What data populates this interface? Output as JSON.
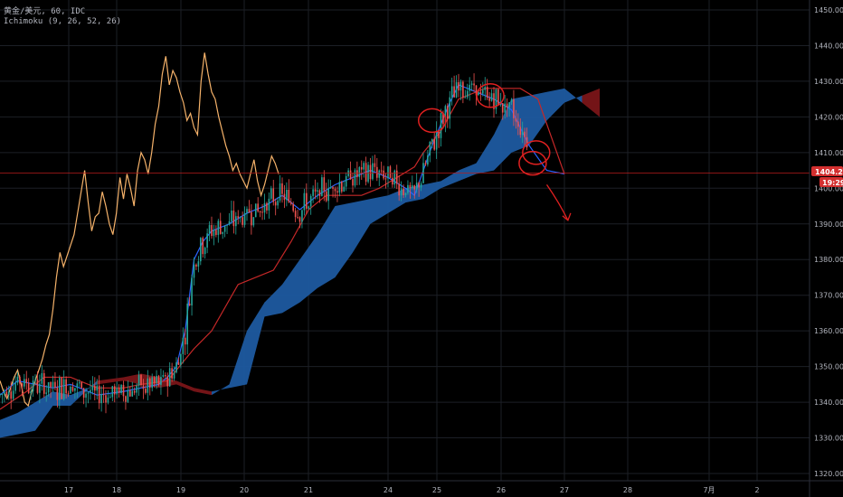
{
  "header": {
    "symbol_line": "黄金/美元, 60, IDC",
    "indicator_line": "Ichimoku (9, 26, 52, 26)"
  },
  "price_axis": {
    "last_price_label": "1404.29",
    "countdown_label": "19:29"
  },
  "chart_data": {
    "type": "line",
    "title": "",
    "xlabel": "",
    "ylabel": "",
    "ylim": [
      1320,
      1450
    ],
    "xlim": [
      16.3,
      2.8
    ],
    "x_tick_labels": [
      "17",
      "18",
      "19",
      "20",
      "21",
      "24",
      "25",
      "26",
      "27",
      "28",
      "7月",
      "2"
    ],
    "y_tick_labels": [
      "1450.00",
      "1440.00",
      "1430.00",
      "1420.00",
      "1410.00",
      "1400.00",
      "1390.00",
      "1380.00",
      "1370.00",
      "1360.00",
      "1350.00",
      "1340.00",
      "1330.00",
      "1320.00"
    ],
    "y_ticks": [
      1450,
      1440,
      1430,
      1420,
      1410,
      1400,
      1390,
      1380,
      1370,
      1360,
      1350,
      1340,
      1330,
      1320
    ],
    "grid": true,
    "last_price": 1404.29,
    "colors": {
      "background": "#000000",
      "grid": "#1c1f26",
      "up_candle": "#26a69a",
      "down_candle": "#ef5350",
      "tenkan": "#2962ff",
      "kijun": "#c62828",
      "chikou": "#f5b26a",
      "cloud_bull": "#1e5aa0",
      "cloud_bear": "#7a1518",
      "annotation": "#e02020",
      "last_price_line": "#b71c1c",
      "axis_text": "#b2b5be"
    },
    "series": [
      {
        "name": "Chikou Span",
        "x": [
          0,
          2,
          4,
          6,
          8,
          10,
          12,
          14,
          16,
          18,
          20,
          22,
          24,
          26,
          28,
          30,
          32,
          34,
          36,
          38,
          40,
          42,
          44,
          46,
          48,
          50,
          52,
          54,
          56,
          58,
          60,
          62,
          64,
          66,
          68,
          70,
          72,
          74,
          76,
          78,
          80,
          82,
          84,
          86,
          88,
          90,
          92,
          94,
          96,
          98,
          100,
          102,
          104,
          106,
          108,
          110,
          112,
          114,
          116,
          118,
          120,
          122,
          124,
          126,
          128,
          130,
          132,
          134,
          136,
          138,
          140,
          142,
          144,
          146,
          148,
          150,
          152,
          154,
          156,
          158
        ],
        "values": [
          1346,
          1343,
          1341,
          1344,
          1347,
          1349,
          1345,
          1340,
          1339,
          1343,
          1346,
          1349,
          1352,
          1356,
          1359,
          1366,
          1375,
          1382,
          1378,
          1381,
          1384,
          1387,
          1393,
          1399,
          1405,
          1396,
          1388,
          1392,
          1393,
          1399,
          1395,
          1390,
          1387,
          1393,
          1403,
          1397,
          1404,
          1400,
          1395,
          1405,
          1410,
          1408,
          1404,
          1410,
          1418,
          1423,
          1432,
          1437,
          1429,
          1433,
          1431,
          1427,
          1424,
          1419,
          1421,
          1417,
          1415,
          1430,
          1438,
          1432,
          1427,
          1425,
          1420,
          1416,
          1412,
          1409,
          1405,
          1407,
          1404,
          1402,
          1400,
          1404,
          1408,
          1402,
          1398,
          1401,
          1405,
          1409,
          1407,
          1404
        ]
      },
      {
        "name": "Tenkan-sen",
        "x": [
          0,
          10,
          20,
          30,
          40,
          55,
          70,
          80,
          90,
          95,
          100,
          105,
          110,
          115,
          120,
          130,
          140,
          150,
          160,
          170,
          180,
          190,
          200,
          210,
          220,
          230,
          235,
          240,
          245,
          250,
          255,
          260,
          270,
          280,
          290,
          300,
          310,
          320
        ],
        "values": [
          1342,
          1346,
          1345,
          1344,
          1345,
          1342,
          1343,
          1344,
          1345,
          1347,
          1350,
          1360,
          1380,
          1385,
          1388,
          1390,
          1393,
          1395,
          1398,
          1394,
          1398,
          1401,
          1403,
          1405,
          1403,
          1400,
          1398,
          1405,
          1412,
          1418,
          1424,
          1429,
          1427,
          1425,
          1422,
          1412,
          1405,
          1404
        ]
      },
      {
        "name": "Kijun-sen",
        "x": [
          0,
          15,
          25,
          40,
          55,
          70,
          80,
          95,
          100,
          110,
          120,
          135,
          145,
          155,
          165,
          175,
          185,
          195,
          205,
          215,
          225,
          235,
          240,
          250,
          260,
          275,
          285,
          295,
          305,
          320
        ],
        "values": [
          1338,
          1343,
          1347,
          1347,
          1344,
          1344,
          1345,
          1346,
          1349,
          1355,
          1360,
          1373,
          1375,
          1377,
          1385,
          1394,
          1398,
          1398,
          1398,
          1400,
          1403,
          1406,
          1410,
          1416,
          1425,
          1428,
          1428,
          1428,
          1425,
          1404
        ]
      }
    ],
    "cloud": {
      "x": [
        0,
        10,
        20,
        30,
        40,
        55,
        70,
        80,
        90,
        100,
        110,
        120,
        130,
        140,
        150,
        160,
        170,
        180,
        190,
        200,
        210,
        220,
        230,
        240,
        250,
        260,
        270,
        280,
        290,
        300,
        310,
        320,
        330,
        340
      ],
      "span_a": [
        1335,
        1337,
        1340,
        1343,
        1342,
        1345,
        1346,
        1345,
        1344,
        1345,
        1343,
        1342,
        1345,
        1360,
        1368,
        1373,
        1380,
        1387,
        1395,
        1396,
        1397,
        1398,
        1400,
        1401,
        1402,
        1405,
        1407,
        1415,
        1425,
        1426,
        1427,
        1428,
        1424,
        1420
      ],
      "span_b": [
        1330,
        1331,
        1332,
        1339,
        1339,
        1346,
        1347,
        1348,
        1347,
        1346,
        1344,
        1343,
        1344,
        1345,
        1364,
        1365,
        1368,
        1372,
        1375,
        1382,
        1390,
        1393,
        1396,
        1397,
        1400,
        1402,
        1404,
        1405,
        1410,
        1412,
        1419,
        1424,
        1426,
        1428
      ]
    },
    "candles": {
      "x_start": 0,
      "x_end": 300,
      "count": 240,
      "source": "approximate hourly OHLC traced from the figure"
    },
    "annotations": {
      "circles_at": [
        [
          245,
          1419
        ],
        [
          278,
          1426
        ],
        [
          302,
          1407
        ],
        [
          304,
          1410
        ]
      ],
      "arrow": {
        "from": [
          310,
          1401
        ],
        "to": [
          322,
          1391
        ]
      }
    }
  }
}
